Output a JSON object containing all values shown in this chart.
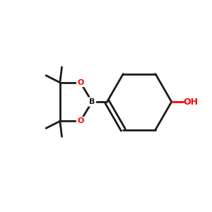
{
  "background_color": "#ffffff",
  "bond_color": "#1a1a1a",
  "oxygen_color": "#ff0000",
  "label_color_O": "#ff0000",
  "label_color_B": "#1a1a1a",
  "label_color_OH": "#ff0000",
  "figsize": [
    3.0,
    3.0
  ],
  "dpi": 100,
  "xlim": [
    0,
    10
  ],
  "ylim": [
    0,
    10
  ]
}
